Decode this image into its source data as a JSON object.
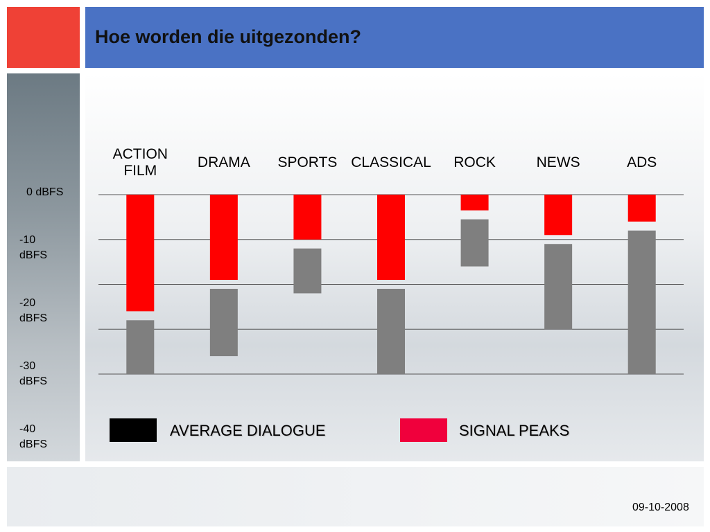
{
  "chart_data": {
    "type": "range_bar",
    "title": "Hoe worden die uitgezonden?",
    "categories": [
      "ACTION FILM",
      "DRAMA",
      "SPORTS",
      "CLASSICAL",
      "ROCK",
      "NEWS",
      "ADS"
    ],
    "series": [
      {
        "name": "AVERAGE DIALOGUE",
        "color": "#7f7f7f",
        "legend_color": "#000000",
        "high": [
          -28,
          -21,
          -12,
          -21,
          -5.5,
          -11,
          -8
        ],
        "low": [
          -40,
          -36,
          -22,
          -40,
          -16,
          -30,
          -40
        ]
      },
      {
        "name": "SIGNAL PEAKS",
        "color": "#ff0000",
        "legend_color": "#f0003c",
        "high": [
          0,
          0,
          0,
          0,
          0,
          0,
          0
        ],
        "low": [
          -26,
          -19,
          -10,
          -19,
          -3.5,
          -9,
          -6
        ]
      }
    ],
    "ylim": [
      -40,
      0
    ],
    "yticks": [
      {
        "value": 0,
        "label": "0 dBFS"
      },
      {
        "value": -10,
        "label": "-10 dBFS"
      },
      {
        "value": -20,
        "label": "-20 dBFS"
      },
      {
        "value": -30,
        "label": "-30 dBFS"
      },
      {
        "value": -40,
        "label": "-40 dBFS"
      }
    ],
    "grid": true
  },
  "footer": {
    "date": "09-10-2008"
  }
}
